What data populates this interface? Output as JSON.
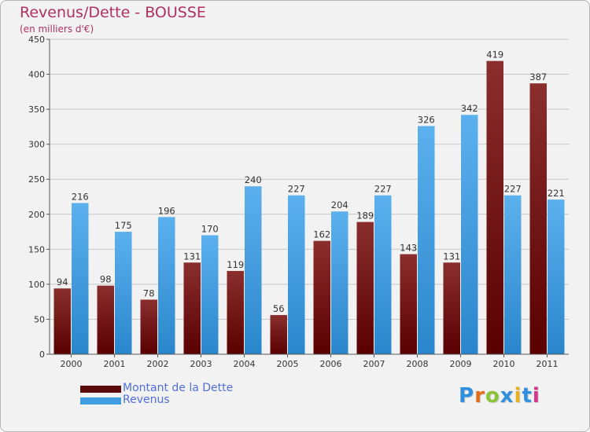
{
  "title": "Revenus/Dette - BOUSSE",
  "subtitle": "(en milliers d'€)",
  "logo_text": "Proxiti",
  "colors": {
    "dette": "#7a1c1c",
    "revenus": "#3e9ee0",
    "title": "#b03060",
    "legend_text": "#4f6fe0"
  },
  "legend": [
    {
      "label": "Montant de la Dette",
      "color": "#5a0a0a"
    },
    {
      "label": "Revenus",
      "color": "#3e9ee0"
    }
  ],
  "chart_data": {
    "type": "bar",
    "title": "Revenus/Dette - BOUSSE",
    "subtitle": "(en milliers d'€)",
    "categories": [
      "2000",
      "2001",
      "2002",
      "2003",
      "2004",
      "2005",
      "2006",
      "2007",
      "2008",
      "2009",
      "2010",
      "2011"
    ],
    "series": [
      {
        "name": "Montant de la Dette",
        "values": [
          94,
          98,
          78,
          131,
          119,
          56,
          162,
          189,
          143,
          131,
          419,
          387
        ]
      },
      {
        "name": "Revenus",
        "values": [
          216,
          175,
          196,
          170,
          240,
          227,
          204,
          227,
          326,
          342,
          227,
          221
        ]
      }
    ],
    "ylim": [
      0,
      450
    ],
    "yticks": [
      0,
      50,
      100,
      150,
      200,
      250,
      300,
      350,
      400,
      450
    ],
    "grid": true,
    "legend_position": "bottom-left"
  }
}
